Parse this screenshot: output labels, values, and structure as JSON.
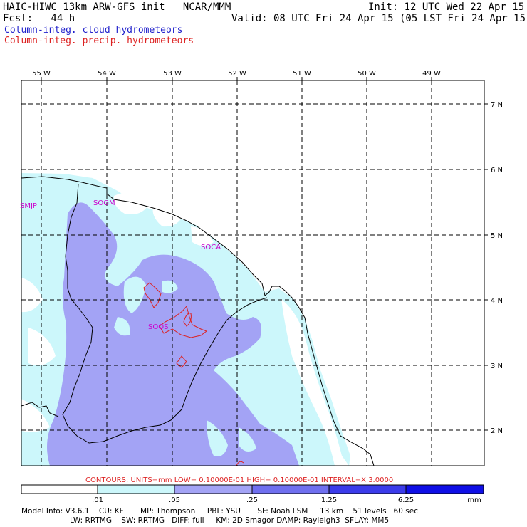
{
  "header": {
    "title": "HAIC-HIWC 13km ARW-GFS init   NCAR/MMM",
    "init": "Init: 12 UTC Wed 22 Apr 15",
    "fcst": "Fcst:   44 h",
    "valid": "Valid: 08 UTC Fri 24 Apr 15 (05 LST Fri 24 Apr 15)",
    "field_cloud": "Column-integ. cloud hydrometeors",
    "field_precip": "Column-integ. precip. hydrometeors"
  },
  "colors": {
    "cloud_field": "#2222cc",
    "precip_field": "#dd2222",
    "station": "#cc00cc",
    "shade_1": "#ccf7fb",
    "shade_2": "#a3a3f5",
    "shade_3": "#6f6fef",
    "shade_4": "#3b3bea",
    "shade_5": "#0f0fe6"
  },
  "longitudes": [
    "55 W",
    "54 W",
    "53 W",
    "52 W",
    "51 W",
    "50 W",
    "49 W"
  ],
  "latitudes": [
    "7 N",
    "6 N",
    "5 N",
    "4 N",
    "3 N",
    "2 N"
  ],
  "stations": [
    "SMJP",
    "SOGM",
    "SOCA",
    "SOOS"
  ],
  "contours": "CONTOURS:  UNITS=mm  LOW= 0.10000E-01  HIGH= 0.10000E-01  INTERVAL=X  3.0000",
  "colorbar": {
    "ticks": [
      ".01",
      ".05",
      ".25",
      "1.25",
      "6.25"
    ],
    "units": "mm"
  },
  "model_info": {
    "line1": "Model Info: V3.6.1    CU: KF       MP: Thompson     PBL: YSU       SF: Noah LSM     13 km    51 levels   60 sec",
    "line2": "LW: RRTMG    SW: RRTMG   DIFF: full     KM: 2D Smagor DAMP: Rayleigh3  SFLAY: MM5"
  }
}
